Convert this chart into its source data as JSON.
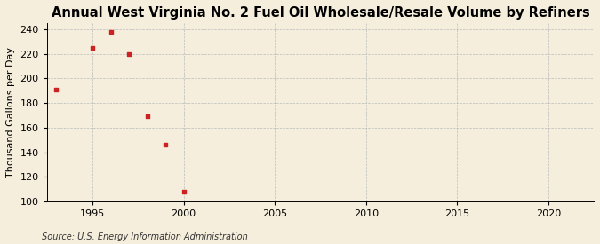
{
  "title": "Annual West Virginia No. 2 Fuel Oil Wholesale/Resale Volume by Refiners",
  "ylabel": "Thousand Gallons per Day",
  "source": "Source: U.S. Energy Information Administration",
  "years": [
    1993,
    1995,
    1996,
    1997,
    1998,
    1999,
    2000
  ],
  "values": [
    191,
    225,
    238,
    220,
    169,
    146,
    108
  ],
  "xlim": [
    1992.5,
    2022.5
  ],
  "ylim": [
    100,
    245
  ],
  "xticks": [
    1995,
    2000,
    2005,
    2010,
    2015,
    2020
  ],
  "yticks": [
    100,
    120,
    140,
    160,
    180,
    200,
    220,
    240
  ],
  "marker_color": "#cc2222",
  "marker": "s",
  "marker_size": 3.5,
  "bg_color": "#f5eedc",
  "grid_color": "#bbbbbb",
  "title_fontsize": 10.5,
  "label_fontsize": 8,
  "tick_fontsize": 8,
  "source_fontsize": 7
}
